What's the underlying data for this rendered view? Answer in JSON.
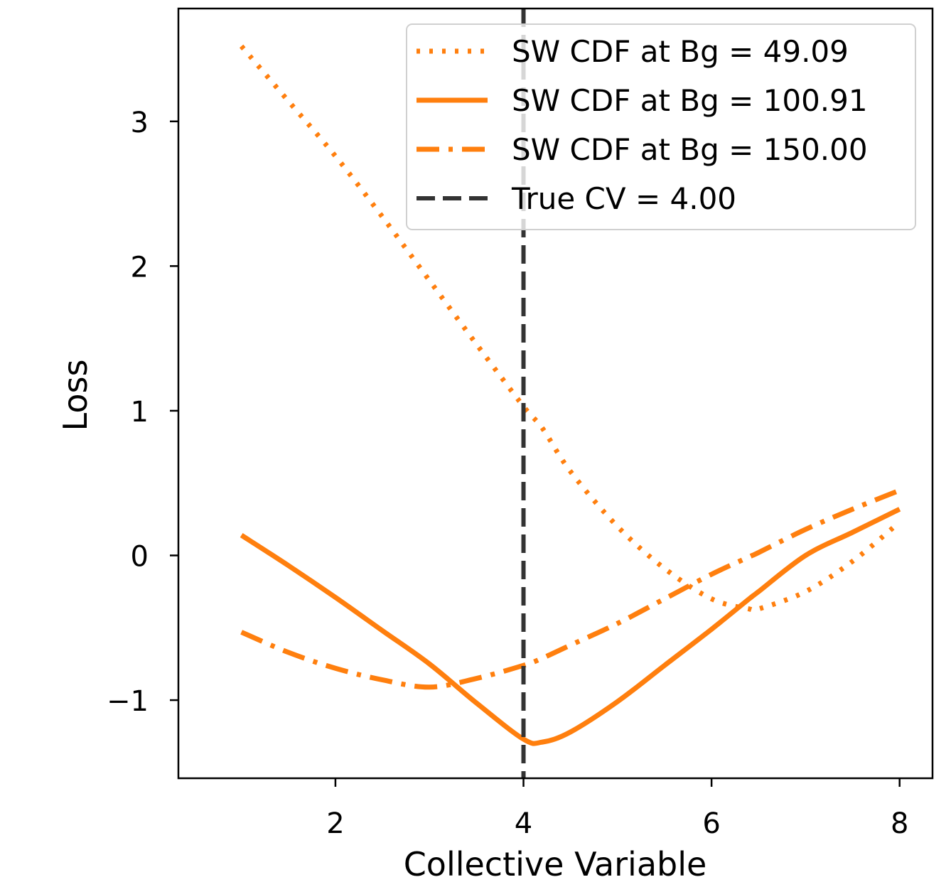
{
  "chart_data": {
    "type": "line",
    "title": "",
    "xlabel": "Collective Variable",
    "ylabel": "Loss",
    "xlim": [
      0.33,
      8.35
    ],
    "ylim": [
      -1.54,
      3.78
    ],
    "xticks": [
      2,
      4,
      6,
      8
    ],
    "xtick_labels": [
      "2",
      "4",
      "6",
      "8"
    ],
    "yticks": [
      -1,
      0,
      1,
      2,
      3
    ],
    "ytick_labels": [
      "−1",
      "0",
      "1",
      "2",
      "3"
    ],
    "grid": false,
    "legend_position": "top-right",
    "x": [
      1.0,
      1.5,
      2.0,
      2.5,
      3.0,
      3.5,
      4.0,
      4.2,
      4.5,
      5.0,
      5.5,
      6.0,
      6.4,
      6.5,
      7.0,
      7.5,
      8.0
    ],
    "series": [
      {
        "name": "SW CDF at Bg = 49.09",
        "style": "dotted",
        "color": "#ff7f0e",
        "values": [
          3.52,
          3.14,
          2.76,
          2.34,
          1.9,
          1.46,
          1.03,
          0.88,
          0.58,
          0.2,
          -0.09,
          -0.3,
          -0.37,
          -0.37,
          -0.25,
          -0.04,
          0.23
        ]
      },
      {
        "name": "SW CDF at Bg = 100.91",
        "style": "solid",
        "color": "#ff7f0e",
        "values": [
          0.14,
          -0.07,
          -0.29,
          -0.52,
          -0.75,
          -1.02,
          -1.27,
          -1.29,
          -1.22,
          -1.01,
          -0.76,
          -0.51,
          -0.3,
          -0.25,
          0.0,
          0.16,
          0.32
        ]
      },
      {
        "name": "SW CDF at Bg = 150.00",
        "style": "dashdot",
        "color": "#ff7f0e",
        "values": [
          -0.53,
          -0.67,
          -0.78,
          -0.86,
          -0.91,
          -0.85,
          -0.76,
          -0.71,
          -0.62,
          -0.47,
          -0.3,
          -0.13,
          -0.01,
          0.02,
          0.18,
          0.32,
          0.45
        ]
      }
    ],
    "vlines": [
      {
        "name": "True CV = 4.00",
        "x": 4.0,
        "style": "dashed",
        "color": "#333333"
      }
    ]
  }
}
